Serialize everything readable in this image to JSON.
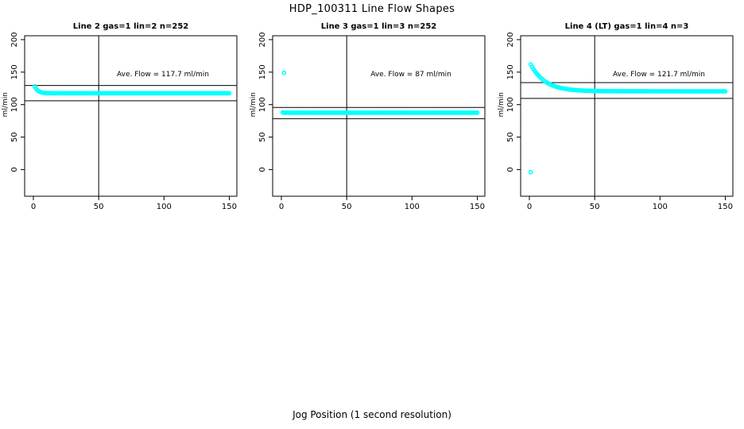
{
  "page": {
    "title": "HDP_100311  Line Flow Shapes",
    "xlabel": "Jog Position (1 second resolution)",
    "background_color": "#ffffff",
    "marker_color": "#00ffff",
    "axis_color": "#000000"
  },
  "chart_data": [
    {
      "type": "scatter",
      "title": "Line 2 gas=1 lin=2 n=252",
      "annotation": "Ave. Flow =  117.7  ml/min",
      "ave_flow_ml_min": 117.7,
      "ylabel": "ml/min",
      "xticks": [
        0,
        50,
        100,
        150
      ],
      "yticks": [
        0,
        50,
        100,
        150,
        200
      ],
      "xlim": [
        -6.7,
        155.8
      ],
      "ylim": [
        -41,
        206
      ],
      "grid": false,
      "vline_x": 50,
      "hlines": [
        129.5,
        105.9
      ],
      "series": {
        "name": "line2-flow",
        "start_x": 1,
        "end_x": 150,
        "step": 1,
        "start_value": 128,
        "steady_value": 117.5,
        "decay_tau": 2.5
      },
      "outliers": []
    },
    {
      "type": "scatter",
      "title": "Line 3 gas=1 lin=3 n=252",
      "annotation": "Ave. Flow =  87  ml/min",
      "ave_flow_ml_min": 87,
      "ylabel": "ml/min",
      "xticks": [
        0,
        50,
        100,
        150
      ],
      "yticks": [
        0,
        50,
        100,
        150,
        200
      ],
      "xlim": [
        -6.7,
        155.8
      ],
      "ylim": [
        -41,
        206
      ],
      "grid": false,
      "vline_x": 50,
      "hlines": [
        95.7,
        78.3
      ],
      "series": {
        "name": "line3-flow",
        "start_x": 1,
        "end_x": 150,
        "step": 1,
        "start_value": 88,
        "steady_value": 87.5,
        "decay_tau": 1
      },
      "outliers": [
        [
          2,
          149
        ]
      ]
    },
    {
      "type": "scatter",
      "title": "Line 4 (LT) gas=1 lin=4 n=3",
      "annotation": "Ave. Flow =  121.7  ml/min",
      "ave_flow_ml_min": 121.7,
      "ylabel": "ml/min",
      "xticks": [
        0,
        50,
        100,
        150
      ],
      "yticks": [
        0,
        50,
        100,
        150,
        200
      ],
      "xlim": [
        -6.7,
        155.8
      ],
      "ylim": [
        -41,
        206
      ],
      "grid": false,
      "vline_x": 50,
      "hlines": [
        133.9,
        109.5
      ],
      "series": {
        "name": "line4-flow",
        "start_x": 1,
        "end_x": 150,
        "step": 1,
        "start_value": 162,
        "steady_value": 120.5,
        "decay_tau": 11
      },
      "outliers": [
        [
          1,
          -4
        ]
      ]
    }
  ]
}
